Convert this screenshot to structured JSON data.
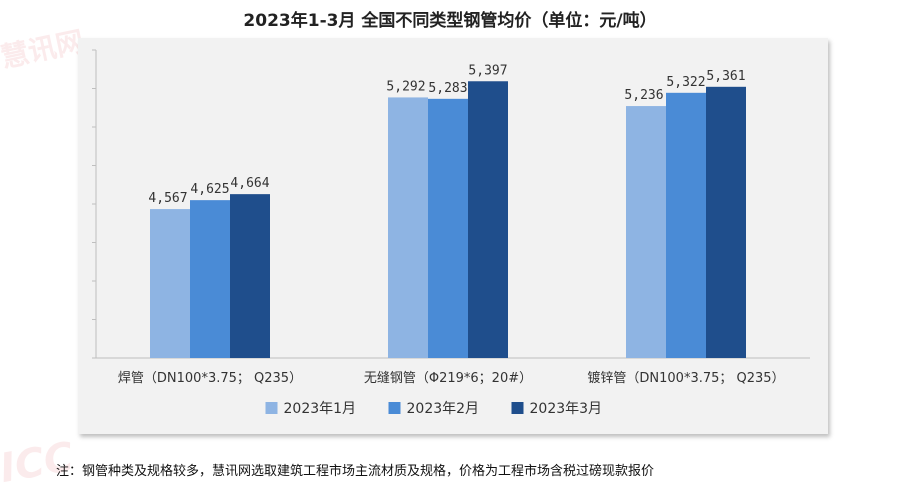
{
  "chart_data": {
    "type": "bar",
    "title": "2023年1-3月 全国不同类型钢管均价（单位：元/吨）",
    "categories": [
      "焊管（DN100*3.75； Q235）",
      "无缝钢管（Φ219*6；20#）",
      "镀锌管（DN100*3.75； Q235）"
    ],
    "series": [
      {
        "name": "2023年1月",
        "values": [
          4567,
          5292,
          5236
        ],
        "color": "#8eb4e3"
      },
      {
        "name": "2023年2月",
        "values": [
          4625,
          5283,
          5322
        ],
        "color": "#4a8bd6"
      },
      {
        "name": "2023年3月",
        "values": [
          4664,
          5397,
          5361
        ],
        "color": "#1f4e8c"
      }
    ],
    "ylim": [
      3600,
      5600
    ],
    "grid": false,
    "legend_position": "bottom"
  },
  "footnote": "注：钢管种类及规格较多，慧讯网选取建筑工程市场主流材质及规格，价格为工程市场含税过磅现款报价",
  "watermark": {
    "brand": "慧讯网",
    "logo": "ICC"
  }
}
